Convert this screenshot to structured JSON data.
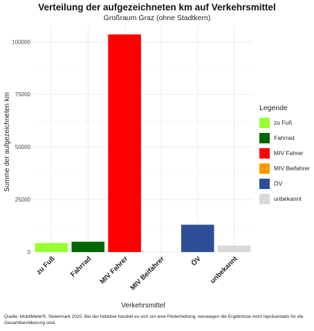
{
  "chart_data": {
    "type": "bar",
    "title": "Verteilung der aufgezeichneten km auf Verkehrsmittel",
    "subtitle": "Großraum Graz (ohne Stadtkern)",
    "xlabel": "Verkehrsmittel",
    "ylabel": "Summe der aufgezeichneten km",
    "categories": [
      "zu Fuß",
      "Fahrrad",
      "MIV Fahrer",
      "MIV Beifahrer",
      "ÖV",
      "unbekannt"
    ],
    "values": [
      4300,
      4900,
      103500,
      0,
      13000,
      3100
    ],
    "colors": [
      "#99ff33",
      "#006600",
      "#ff0000",
      "#ff9900",
      "#2e4f97",
      "#d9d9d9"
    ],
    "ylim": [
      0,
      108000
    ],
    "yticks": [
      0,
      25000,
      50000,
      75000,
      100000
    ],
    "grid": true,
    "legend_title": "Legende",
    "legend_position": "right"
  },
  "caption": "Quelle: MobilMeter®, Steiermark 2020. Bei der Initiative handelt es sich um eine Piloterhebung, weswegen die Ergebnisse nicht repräsentativ für die Gesamtbevölkerung sind."
}
